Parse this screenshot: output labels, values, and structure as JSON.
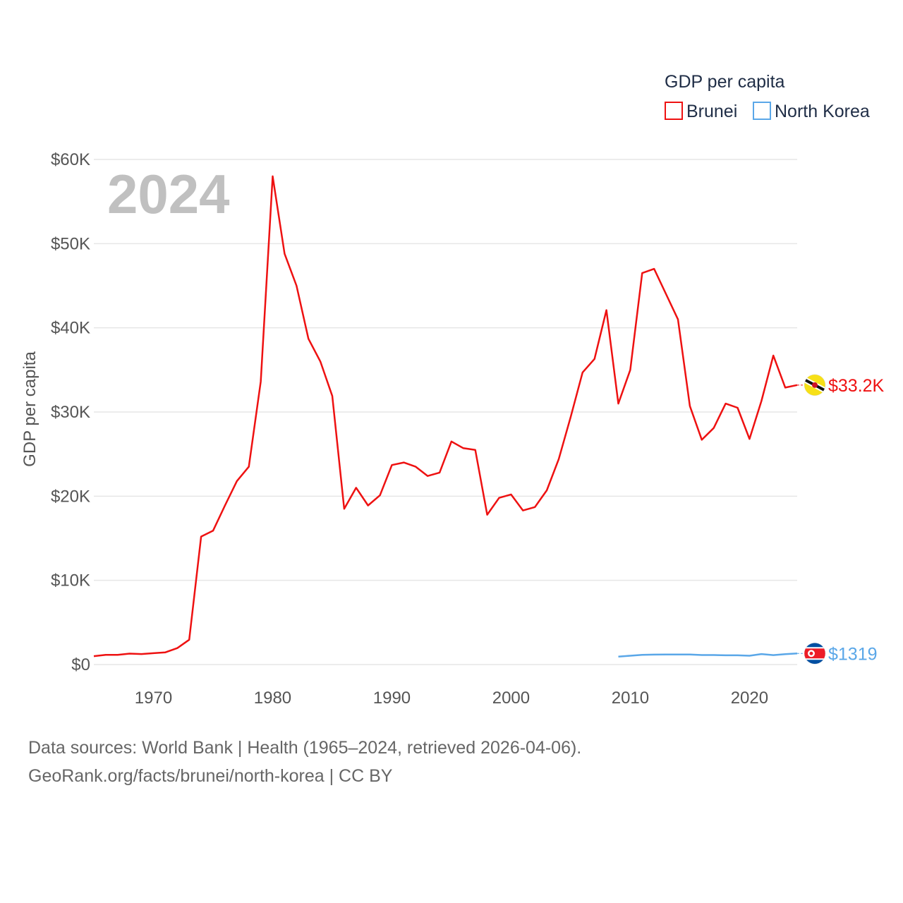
{
  "chart_data": {
    "type": "line",
    "year_label": "2024",
    "ylabel": "GDP per capita",
    "xlim": [
      1965,
      2024
    ],
    "ylim": [
      0,
      60000
    ],
    "y_ticks": [
      {
        "value": 0,
        "label": "$0"
      },
      {
        "value": 10000,
        "label": "$10K"
      },
      {
        "value": 20000,
        "label": "$20K"
      },
      {
        "value": 30000,
        "label": "$30K"
      },
      {
        "value": 40000,
        "label": "$40K"
      },
      {
        "value": 50000,
        "label": "$50K"
      },
      {
        "value": 60000,
        "label": "$60K"
      }
    ],
    "x_ticks": [
      {
        "value": 1970,
        "label": "1970"
      },
      {
        "value": 1980,
        "label": "1980"
      },
      {
        "value": 1990,
        "label": "1990"
      },
      {
        "value": 2000,
        "label": "2000"
      },
      {
        "value": 2010,
        "label": "2010"
      },
      {
        "value": 2020,
        "label": "2020"
      }
    ],
    "legend": {
      "title": "GDP per capita",
      "position": "top-right"
    },
    "series": [
      {
        "name": "Brunei",
        "color": "#ee1111",
        "end_label": "$33.2K",
        "flag_icon": "brunei-flag-icon",
        "x": [
          1965,
          1966,
          1967,
          1968,
          1969,
          1970,
          1971,
          1972,
          1973,
          1974,
          1975,
          1976,
          1977,
          1978,
          1979,
          1980,
          1981,
          1982,
          1983,
          1984,
          1985,
          1986,
          1987,
          1988,
          1989,
          1990,
          1991,
          1992,
          1993,
          1994,
          1995,
          1996,
          1997,
          1998,
          1999,
          2000,
          2001,
          2002,
          2003,
          2004,
          2005,
          2006,
          2007,
          2008,
          2009,
          2010,
          2011,
          2012,
          2013,
          2014,
          2015,
          2016,
          2017,
          2018,
          2019,
          2020,
          2021,
          2022,
          2023,
          2024
        ],
        "values": [
          1000,
          1150,
          1150,
          1300,
          1250,
          1350,
          1450,
          1950,
          2950,
          15200,
          15900,
          18900,
          21800,
          23500,
          33600,
          58000,
          48800,
          45000,
          38700,
          36000,
          31900,
          18500,
          21000,
          18900,
          20100,
          23700,
          24000,
          23500,
          22400,
          22800,
          26500,
          25700,
          25500,
          17800,
          19800,
          20200,
          18300,
          18700,
          20700,
          24400,
          29400,
          34700,
          36300,
          42100,
          31000,
          35000,
          46500,
          47000,
          44000,
          41000,
          30700,
          26700,
          28100,
          31000,
          30500,
          26800,
          31300,
          36700,
          32900,
          33200
        ]
      },
      {
        "name": "North Korea",
        "color": "#5aa7e8",
        "end_label": "$1319",
        "flag_icon": "north-korea-flag-icon",
        "x": [
          2009,
          2010,
          2011,
          2012,
          2013,
          2014,
          2015,
          2016,
          2017,
          2018,
          2019,
          2020,
          2021,
          2022,
          2023,
          2024
        ],
        "values": [
          950,
          1050,
          1150,
          1180,
          1200,
          1200,
          1200,
          1130,
          1130,
          1100,
          1100,
          1050,
          1250,
          1120,
          1230,
          1319
        ]
      }
    ]
  },
  "footer": {
    "line1": "Data sources: World Bank | Health (1965–2024, retrieved 2026-04-06).",
    "line2": "GeoRank.org/facts/brunei/north-korea | CC BY"
  }
}
